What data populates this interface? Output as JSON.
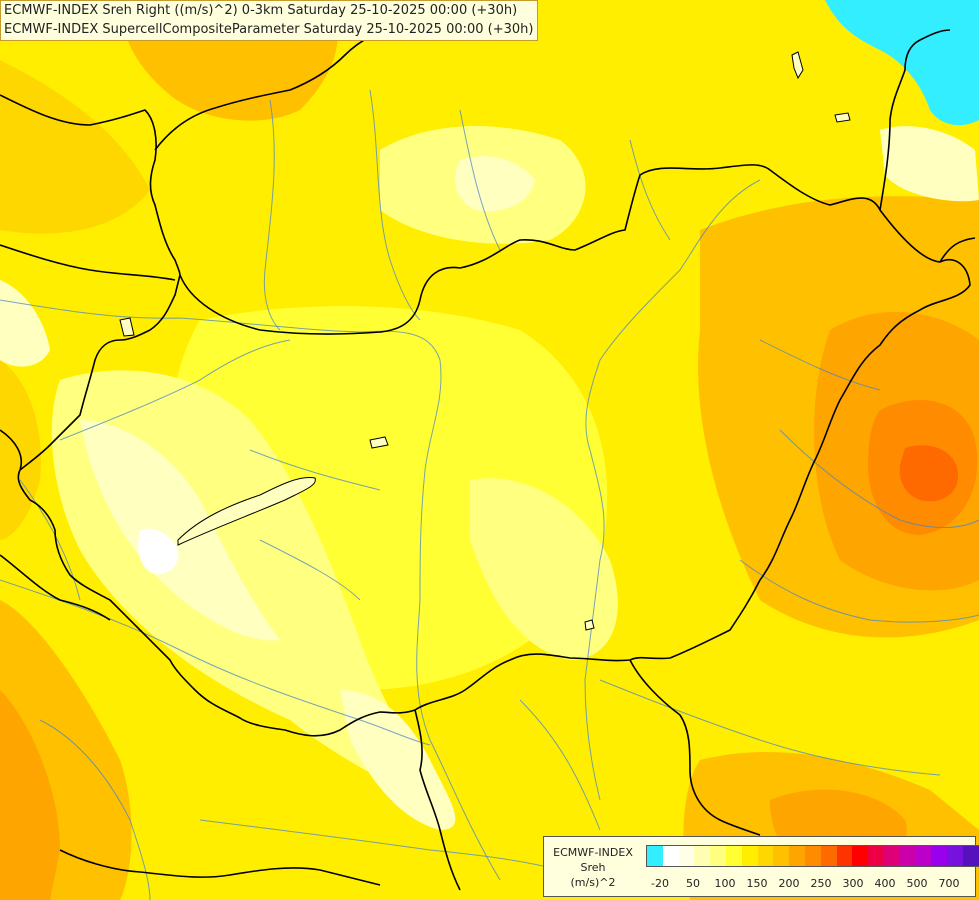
{
  "title": {
    "line1": "ECMWF-INDEX Sreh Right ((m/s)^2) 0-3km Saturday 25-10-2025 00:00 (+30h)",
    "line2": "ECMWF-INDEX SupercellCompositeParameter Saturday 25-10-2025 00:00 (+30h)"
  },
  "legend": {
    "source": "ECMWF-INDEX",
    "variable": "Sreh",
    "unit": "(m/s)^2",
    "colors": [
      "#33eeff",
      "#ffffff",
      "#ffffe8",
      "#ffffb4",
      "#ffff80",
      "#ffff33",
      "#ffee00",
      "#ffd700",
      "#ffc000",
      "#ffa500",
      "#ff8c00",
      "#ff6a00",
      "#ff3300",
      "#ff0000",
      "#ee0044",
      "#dd0077",
      "#cc00aa",
      "#bb00cc",
      "#9900ee",
      "#7711dd",
      "#5511bb",
      "#330099",
      "#110077"
    ],
    "ticks": [
      "-20",
      "50",
      "100",
      "150",
      "200",
      "250",
      "300",
      "400",
      "500",
      "700"
    ]
  },
  "map": {
    "field_colors": {
      "background": "#ffee00",
      "pale": "#ffffc0",
      "light": "#ffff80",
      "yellow": "#ffff33",
      "gold": "#ffd700",
      "amber": "#ffc000",
      "orange": "#ffa500",
      "dark_orange": "#ff8c00",
      "red_orange": "#ff6a00",
      "white": "#ffffff",
      "cyan": "#33eeff"
    },
    "border_color": "#000000",
    "river_color": "#4a86c8"
  }
}
